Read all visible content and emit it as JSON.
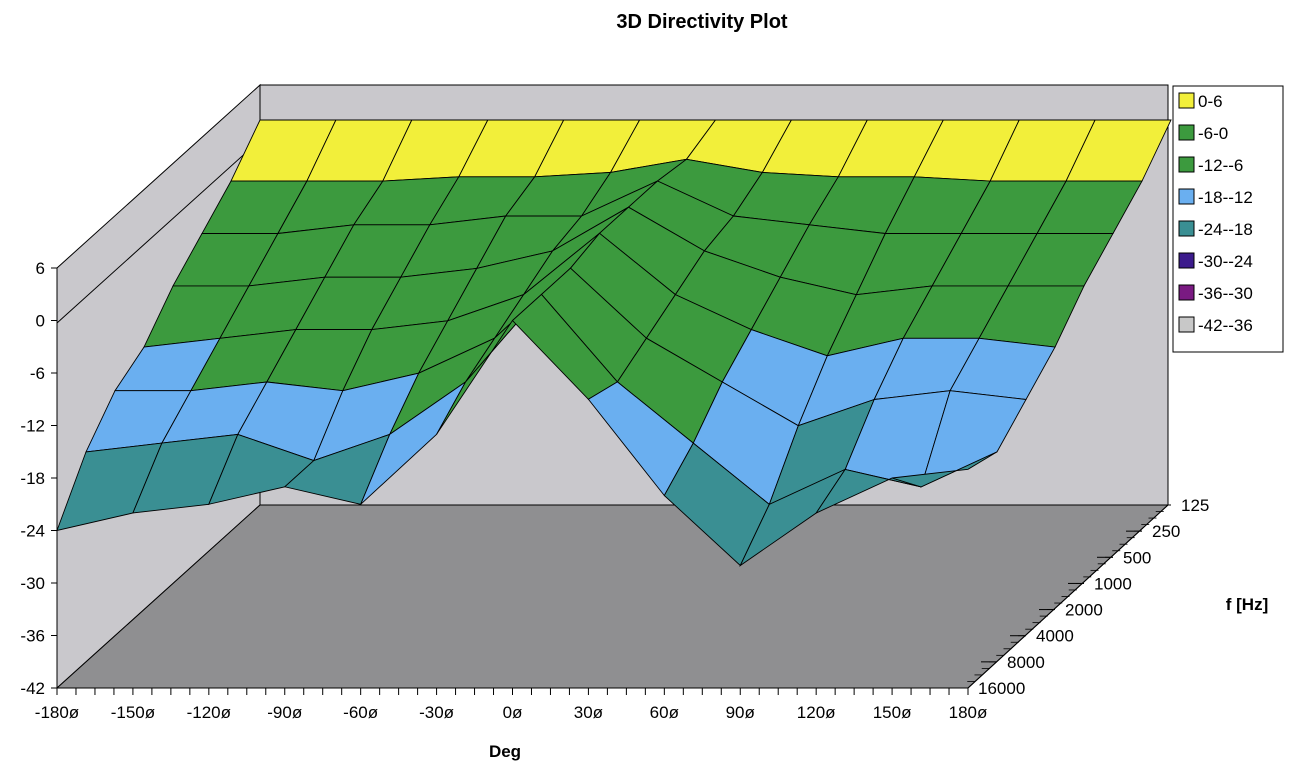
{
  "chart_data": {
    "type": "surface-3d",
    "title": "3D Directivity Plot",
    "xlabel": "Deg",
    "ylabel": "f [Hz]",
    "zlabel": "",
    "x_ticks": [
      "-180ø",
      "-150ø",
      "-120ø",
      "-90ø",
      "-60ø",
      "-30ø",
      "0ø",
      "30ø",
      "60ø",
      "90ø",
      "120ø",
      "150ø",
      "180ø"
    ],
    "y_ticks": [
      "125",
      "250",
      "500",
      "1000",
      "2000",
      "4000",
      "8000",
      "16000"
    ],
    "z_ticks": [
      "6",
      "0",
      "-6",
      "-12",
      "-18",
      "-24",
      "-30",
      "-36",
      "-42"
    ],
    "angles": [
      -180,
      -150,
      -120,
      -90,
      -60,
      -30,
      0,
      30,
      60,
      90,
      120,
      150,
      180
    ],
    "frequencies": [
      125,
      250,
      500,
      1000,
      2000,
      4000,
      8000,
      16000
    ],
    "zlim": [
      -42,
      6
    ],
    "values_db": [
      [
        2,
        2,
        2,
        2,
        2,
        2,
        2,
        2,
        2,
        2,
        2,
        2,
        2
      ],
      [
        -2,
        -2,
        -2,
        -1.5,
        -1.5,
        -1,
        0.5,
        -1,
        -1.5,
        -1.5,
        -2,
        -2,
        -2
      ],
      [
        -5,
        -5,
        -4,
        -4,
        -3,
        -3,
        1,
        -3,
        -4,
        -5,
        -5,
        -5,
        -5
      ],
      [
        -8,
        -8,
        -7,
        -7,
        -6,
        -4,
        1,
        -4,
        -7,
        -9,
        -8,
        -8,
        -8
      ],
      [
        -12,
        -11,
        -10,
        -10,
        -9,
        -6,
        1,
        -6,
        -10,
        -13,
        -11,
        -11,
        -12
      ],
      [
        -14,
        -14,
        -13,
        -14,
        -12,
        -8,
        0,
        -8,
        -13,
        -18,
        -15,
        -14,
        -15
      ],
      [
        -18,
        -17,
        -16,
        -19,
        -16,
        -10,
        0,
        -10,
        -17,
        -24,
        -20,
        -22,
        -18
      ],
      [
        -24,
        -22,
        -21,
        -19,
        -21,
        -13,
        0,
        -9,
        -20,
        -28,
        -22,
        -18,
        -17
      ]
    ],
    "legend": [
      {
        "label": "0-6",
        "color": "#f2ef3a"
      },
      {
        "label": "-6-0",
        "color": "#3c9a3e"
      },
      {
        "label": "-12--6",
        "color": "#3c9a3e"
      },
      {
        "label": "-18--12",
        "color": "#6aaff0"
      },
      {
        "label": "-24--18",
        "color": "#3a8f93"
      },
      {
        "label": "-30--24",
        "color": "#3c1b8c"
      },
      {
        "label": "-36--30",
        "color": "#7a1a82"
      },
      {
        "label": "-42--36",
        "color": "#c8c8c8"
      }
    ],
    "legend_position": "right",
    "grid": false
  }
}
